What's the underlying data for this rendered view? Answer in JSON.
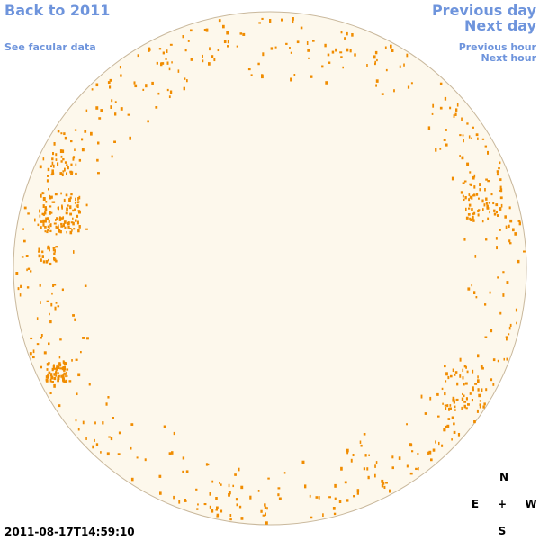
{
  "navigation": {
    "back": "Back to 2011",
    "facular_data": "See facular data",
    "previous_day": "Previous day",
    "next_day": "Next day",
    "previous_hour": "Previous hour",
    "next_hour": "Next hour"
  },
  "timestamp": "2011-08-17T14:59:10",
  "compass": {
    "north": "N",
    "east": "E",
    "center": "+",
    "west": "W",
    "south": "S"
  }
}
